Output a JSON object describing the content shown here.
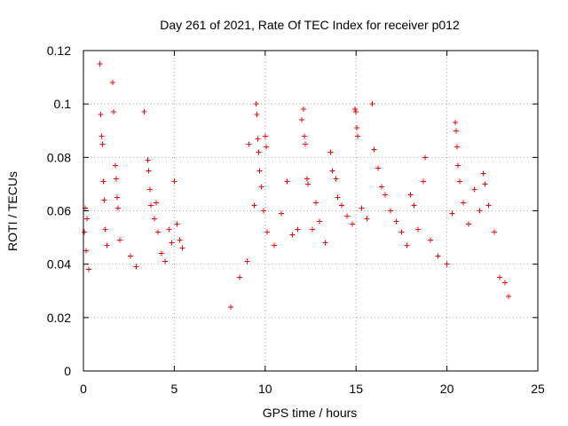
{
  "chart_data": {
    "type": "scatter",
    "title": "Day 261 of 2021, Rate Of TEC Index for receiver p012",
    "xlabel": "GPS time / hours",
    "ylabel": "ROTI / TECUs",
    "xlim": [
      0,
      25
    ],
    "ylim": [
      0,
      0.12
    ],
    "xticks": [
      0,
      5,
      10,
      15,
      20,
      25
    ],
    "xtick_labels": [
      "0",
      "5",
      "10",
      "15",
      "20",
      "25"
    ],
    "yticks": [
      0,
      0.02,
      0.04,
      0.06,
      0.08,
      0.1,
      0.12
    ],
    "ytick_labels": [
      "0",
      "0.02",
      "0.04",
      "0.06",
      "0.08",
      "0.1",
      "0.12"
    ],
    "grid": true,
    "marker": "plus",
    "color": "#ff0000",
    "data_gaps_hours": [
      [
        5.6,
        7.8
      ],
      [
        23.5,
        25
      ]
    ],
    "series": [
      {
        "points": [
          [
            0.05,
            0.052
          ],
          [
            0.1,
            0.061
          ],
          [
            0.15,
            0.045
          ],
          [
            0.2,
            0.057
          ],
          [
            0.3,
            0.038
          ],
          [
            0.9,
            0.115
          ],
          [
            0.95,
            0.096
          ],
          [
            1.0,
            0.088
          ],
          [
            1.05,
            0.085
          ],
          [
            1.1,
            0.071
          ],
          [
            1.15,
            0.064
          ],
          [
            1.2,
            0.053
          ],
          [
            1.3,
            0.047
          ],
          [
            1.6,
            0.108
          ],
          [
            1.65,
            0.097
          ],
          [
            1.75,
            0.077
          ],
          [
            1.8,
            0.072
          ],
          [
            1.85,
            0.065
          ],
          [
            1.9,
            0.061
          ],
          [
            2.0,
            0.049
          ],
          [
            2.6,
            0.043
          ],
          [
            2.9,
            0.039
          ],
          [
            3.35,
            0.097
          ],
          [
            3.55,
            0.079
          ],
          [
            3.6,
            0.075
          ],
          [
            3.65,
            0.068
          ],
          [
            3.7,
            0.062
          ],
          [
            3.9,
            0.057
          ],
          [
            4.0,
            0.063
          ],
          [
            4.1,
            0.052
          ],
          [
            4.3,
            0.044
          ],
          [
            4.5,
            0.041
          ],
          [
            4.7,
            0.053
          ],
          [
            4.85,
            0.048
          ],
          [
            5.0,
            0.071
          ],
          [
            5.15,
            0.055
          ],
          [
            5.3,
            0.049
          ],
          [
            5.45,
            0.046
          ],
          [
            8.1,
            0.024
          ],
          [
            8.6,
            0.035
          ],
          [
            9.0,
            0.041
          ],
          [
            9.1,
            0.085
          ],
          [
            9.4,
            0.062
          ],
          [
            9.5,
            0.1
          ],
          [
            9.55,
            0.096
          ],
          [
            9.6,
            0.087
          ],
          [
            9.65,
            0.082
          ],
          [
            9.7,
            0.075
          ],
          [
            9.8,
            0.069
          ],
          [
            9.9,
            0.06
          ],
          [
            10.0,
            0.088
          ],
          [
            10.05,
            0.084
          ],
          [
            10.1,
            0.052
          ],
          [
            10.5,
            0.047
          ],
          [
            10.9,
            0.059
          ],
          [
            11.2,
            0.071
          ],
          [
            11.5,
            0.051
          ],
          [
            11.8,
            0.053
          ],
          [
            12.0,
            0.094
          ],
          [
            12.1,
            0.098
          ],
          [
            12.15,
            0.088
          ],
          [
            12.2,
            0.085
          ],
          [
            12.3,
            0.072
          ],
          [
            12.35,
            0.07
          ],
          [
            12.6,
            0.053
          ],
          [
            12.8,
            0.063
          ],
          [
            13.0,
            0.056
          ],
          [
            13.3,
            0.048
          ],
          [
            13.6,
            0.082
          ],
          [
            13.7,
            0.075
          ],
          [
            13.9,
            0.072
          ],
          [
            14.0,
            0.065
          ],
          [
            14.2,
            0.062
          ],
          [
            14.5,
            0.058
          ],
          [
            14.8,
            0.055
          ],
          [
            14.95,
            0.098
          ],
          [
            15.0,
            0.097
          ],
          [
            15.05,
            0.091
          ],
          [
            15.1,
            0.088
          ],
          [
            15.3,
            0.061
          ],
          [
            15.6,
            0.057
          ],
          [
            15.9,
            0.1
          ],
          [
            16.0,
            0.083
          ],
          [
            16.2,
            0.076
          ],
          [
            16.4,
            0.069
          ],
          [
            16.6,
            0.066
          ],
          [
            16.9,
            0.06
          ],
          [
            17.2,
            0.056
          ],
          [
            17.5,
            0.052
          ],
          [
            17.8,
            0.047
          ],
          [
            18.0,
            0.066
          ],
          [
            18.2,
            0.062
          ],
          [
            18.4,
            0.053
          ],
          [
            18.7,
            0.071
          ],
          [
            18.8,
            0.08
          ],
          [
            19.1,
            0.049
          ],
          [
            19.5,
            0.043
          ],
          [
            20.0,
            0.04
          ],
          [
            20.3,
            0.059
          ],
          [
            20.45,
            0.093
          ],
          [
            20.5,
            0.09
          ],
          [
            20.55,
            0.084
          ],
          [
            20.6,
            0.077
          ],
          [
            20.7,
            0.071
          ],
          [
            20.9,
            0.063
          ],
          [
            21.2,
            0.055
          ],
          [
            21.5,
            0.068
          ],
          [
            21.8,
            0.06
          ],
          [
            22.0,
            0.074
          ],
          [
            22.1,
            0.07
          ],
          [
            22.3,
            0.062
          ],
          [
            22.6,
            0.052
          ],
          [
            22.9,
            0.035
          ],
          [
            23.2,
            0.033
          ],
          [
            23.4,
            0.028
          ]
        ]
      }
    ]
  }
}
